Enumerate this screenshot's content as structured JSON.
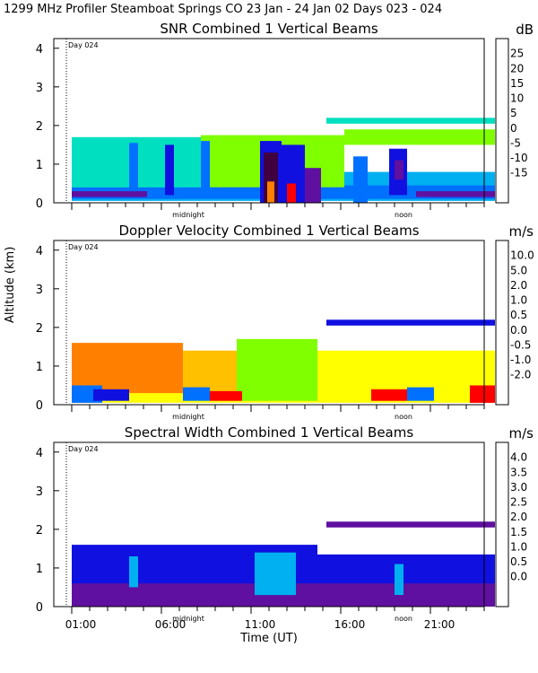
{
  "page": {
    "title": "1299 MHz Profiler  Steamboat Springs CO  23 Jan - 24 Jan 02 Days 023 - 024",
    "xlabel": "Time (UT)",
    "ylabel": "Altitude (km)"
  },
  "chart_data": [
    {
      "type": "heatmap",
      "title": "SNR Combined 1 Vertical Beams",
      "unit": "dB",
      "ylim": [
        0,
        4.25
      ],
      "yticks": [
        "0",
        "1",
        "2",
        "3",
        "4"
      ],
      "day_marker": "Day 024",
      "annotations": {
        "midnight": "midnight",
        "noon": "noon"
      },
      "colorbar": {
        "labels": [
          "25",
          "20",
          "15",
          "10",
          "5",
          "0",
          "-5",
          "-10",
          "-15"
        ],
        "colors": [
          "#ffff00",
          "#ffc000",
          "#ff8000",
          "#ff0000",
          "#400040",
          "#6010a0",
          "#1010e0",
          "#0070ff",
          "#00b0f0",
          "#00e0c0",
          "#80ff00"
        ]
      },
      "features": [
        {
          "t0": 0.3,
          "t1": 23.9,
          "a0": 0.05,
          "a1": 0.8,
          "level": 8
        },
        {
          "t0": 0.3,
          "t1": 23.9,
          "a0": 0.1,
          "a1": 0.45,
          "level": 7
        },
        {
          "t0": 0.3,
          "t1": 4.5,
          "a0": 0.15,
          "a1": 0.3,
          "level": 5
        },
        {
          "t0": 19.5,
          "t1": 23.9,
          "a0": 0.15,
          "a1": 0.3,
          "level": 5
        },
        {
          "t0": 0.3,
          "t1": 7.5,
          "a0": 0.4,
          "a1": 1.7,
          "level": 9
        },
        {
          "t0": 7.5,
          "t1": 15.5,
          "a0": 0.4,
          "a1": 1.75,
          "level": 10
        },
        {
          "t0": 14.5,
          "t1": 23.9,
          "a0": 2.05,
          "a1": 2.2,
          "level": 9
        },
        {
          "t0": 15.5,
          "t1": 23.9,
          "a0": 1.5,
          "a1": 1.9,
          "level": 10
        },
        {
          "t0": 3.5,
          "t1": 4.0,
          "a0": 0.3,
          "a1": 1.55,
          "level": 7
        },
        {
          "t0": 5.5,
          "t1": 6.0,
          "a0": 0.2,
          "a1": 1.5,
          "level": 6
        },
        {
          "t0": 7.5,
          "t1": 8.0,
          "a0": 0.25,
          "a1": 1.6,
          "level": 7
        },
        {
          "t0": 10.8,
          "t1": 12.0,
          "a0": 0.0,
          "a1": 1.6,
          "level": 6
        },
        {
          "t0": 11.0,
          "t1": 11.8,
          "a0": 0.0,
          "a1": 1.3,
          "level": 4
        },
        {
          "t0": 11.2,
          "t1": 11.6,
          "a0": 0.0,
          "a1": 0.55,
          "level": 2
        },
        {
          "t0": 12.0,
          "t1": 13.3,
          "a0": 0.0,
          "a1": 1.5,
          "level": 6
        },
        {
          "t0": 12.3,
          "t1": 12.8,
          "a0": 0.0,
          "a1": 0.5,
          "level": 3
        },
        {
          "t0": 13.3,
          "t1": 14.2,
          "a0": 0.0,
          "a1": 0.9,
          "level": 5
        },
        {
          "t0": 16.0,
          "t1": 16.8,
          "a0": 0.0,
          "a1": 1.2,
          "level": 7
        },
        {
          "t0": 18.0,
          "t1": 19.0,
          "a0": 0.2,
          "a1": 1.4,
          "level": 6
        },
        {
          "t0": 18.3,
          "t1": 18.8,
          "a0": 0.6,
          "a1": 1.1,
          "level": 5
        }
      ]
    },
    {
      "type": "heatmap",
      "title": "Doppler Velocity Combined 1 Vertical Beams",
      "unit": "m/s",
      "ylim": [
        0,
        4.25
      ],
      "yticks": [
        "0",
        "1",
        "2",
        "3",
        "4"
      ],
      "day_marker": "Day 024",
      "annotations": {
        "midnight": "midnight",
        "noon": "noon"
      },
      "colorbar": {
        "labels": [
          "10.0",
          "5.0",
          "2.0",
          "1.0",
          "0.5",
          "0.0",
          "-0.5",
          "-1.0",
          "-2.0"
        ],
        "colors": [
          "#400040",
          "#6010a0",
          "#1010e0",
          "#0070ff",
          "#00b0f0",
          "#00d000",
          "#80ff00",
          "#ffff00",
          "#ffc000",
          "#ff8000",
          "#ff0000"
        ]
      },
      "features": [
        {
          "t0": 0.3,
          "t1": 23.9,
          "a0": 0.05,
          "a1": 0.75,
          "level": 7
        },
        {
          "t0": 0.3,
          "t1": 6.5,
          "a0": 0.3,
          "a1": 1.6,
          "level": 9
        },
        {
          "t0": 6.5,
          "t1": 9.5,
          "a0": 0.3,
          "a1": 1.4,
          "level": 8
        },
        {
          "t0": 9.5,
          "t1": 14.0,
          "a0": 0.1,
          "a1": 1.7,
          "level": 6
        },
        {
          "t0": 14.0,
          "t1": 23.9,
          "a0": 0.2,
          "a1": 1.4,
          "level": 7
        },
        {
          "t0": 14.5,
          "t1": 23.9,
          "a0": 2.05,
          "a1": 2.2,
          "level": 2
        },
        {
          "t0": 0.3,
          "t1": 2.0,
          "a0": 0.05,
          "a1": 0.5,
          "level": 3
        },
        {
          "t0": 1.5,
          "t1": 3.5,
          "a0": 0.1,
          "a1": 0.4,
          "level": 2
        },
        {
          "t0": 6.5,
          "t1": 8.0,
          "a0": 0.1,
          "a1": 0.45,
          "level": 3
        },
        {
          "t0": 8.0,
          "t1": 9.8,
          "a0": 0.1,
          "a1": 0.35,
          "level": 10
        },
        {
          "t0": 17.0,
          "t1": 19.0,
          "a0": 0.1,
          "a1": 0.4,
          "level": 10
        },
        {
          "t0": 19.0,
          "t1": 20.5,
          "a0": 0.1,
          "a1": 0.45,
          "level": 3
        },
        {
          "t0": 22.5,
          "t1": 23.9,
          "a0": 0.05,
          "a1": 0.5,
          "level": 10
        }
      ]
    },
    {
      "type": "heatmap",
      "title": "Spectral Width Combined 1 Vertical Beams",
      "unit": "m/s",
      "ylim": [
        0,
        4.25
      ],
      "yticks": [
        "0",
        "1",
        "2",
        "3",
        "4"
      ],
      "day_marker": "Day 024",
      "annotations": {
        "midnight": "midnight",
        "noon": "noon"
      },
      "xticks": [
        "01:00",
        "06:00",
        "11:00",
        "16:00",
        "21:00"
      ],
      "colorbar": {
        "labels": [
          "4.0",
          "3.5",
          "3.0",
          "2.5",
          "2.0",
          "1.5",
          "1.0",
          "0.5",
          "0.0"
        ],
        "colors": [
          "#ff0000",
          "#ff8000",
          "#ffc000",
          "#ffff00",
          "#80ff00",
          "#00d000",
          "#00b0f0",
          "#0070ff",
          "#1010e0",
          "#6010a0",
          "#400040"
        ]
      },
      "features": [
        {
          "t0": 0.3,
          "t1": 23.9,
          "a0": 0.0,
          "a1": 0.7,
          "level": 9
        },
        {
          "t0": 0.3,
          "t1": 14.0,
          "a0": 0.6,
          "a1": 1.6,
          "level": 8
        },
        {
          "t0": 14.0,
          "t1": 23.9,
          "a0": 0.6,
          "a1": 1.35,
          "level": 8
        },
        {
          "t0": 10.5,
          "t1": 12.8,
          "a0": 0.3,
          "a1": 1.4,
          "level": 6
        },
        {
          "t0": 3.5,
          "t1": 4.0,
          "a0": 0.5,
          "a1": 1.3,
          "level": 6
        },
        {
          "t0": 18.3,
          "t1": 18.8,
          "a0": 0.3,
          "a1": 1.1,
          "level": 6
        },
        {
          "t0": 14.5,
          "t1": 23.9,
          "a0": 2.05,
          "a1": 2.2,
          "level": 9
        }
      ]
    }
  ]
}
